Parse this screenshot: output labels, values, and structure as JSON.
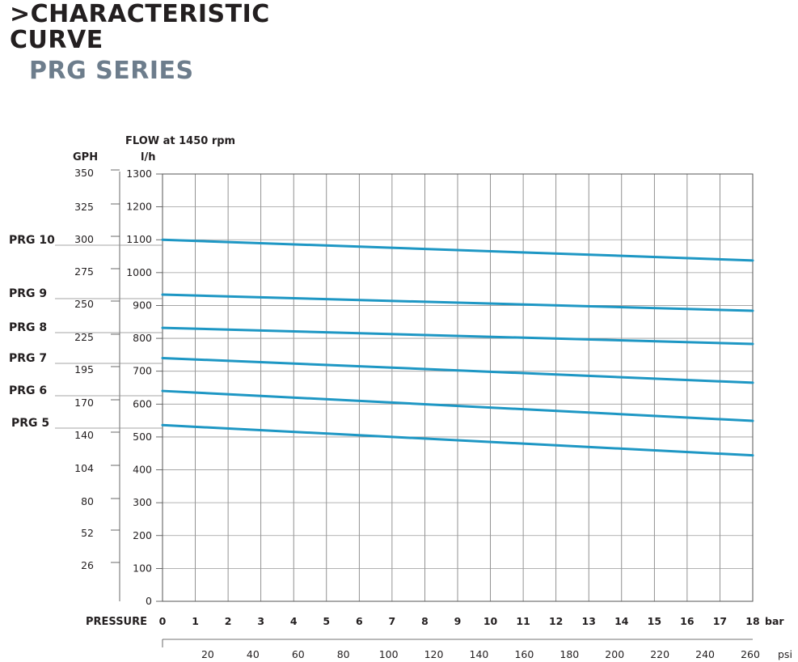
{
  "header": {
    "title_line1": ">CHARACTERISTIC",
    "title_line2": "CURVE",
    "subtitle": "PRG SERIES"
  },
  "chart_data": {
    "type": "line",
    "title": "FLOW at 1450 rpm",
    "ylabel_gph": "GPH",
    "ylabel_lh": "l/h",
    "xlabel": "PRESSURE",
    "x_unit_bar": "bar",
    "x_unit_psi": "psi",
    "x_bar_ticks": [
      "0",
      "1",
      "2",
      "3",
      "4",
      "5",
      "6",
      "7",
      "8",
      "9",
      "10",
      "11",
      "12",
      "13",
      "14",
      "15",
      "16",
      "17",
      "18"
    ],
    "x_psi_ticks": [
      "20",
      "40",
      "60",
      "80",
      "100",
      "120",
      "140",
      "160",
      "180",
      "200",
      "220",
      "240",
      "260"
    ],
    "x_psi_values": [
      20,
      40,
      60,
      80,
      100,
      120,
      140,
      160,
      180,
      200,
      220,
      240,
      260
    ],
    "y_lh_ticks": [
      "0",
      "100",
      "200",
      "300",
      "400",
      "500",
      "600",
      "700",
      "800",
      "900",
      "1000",
      "1100",
      "1200",
      "1300"
    ],
    "y_gph_ticks": [
      "26",
      "52",
      "80",
      "104",
      "140",
      "170",
      "195",
      "225",
      "250",
      "275",
      "300",
      "325",
      "350"
    ],
    "xlim": [
      0,
      18
    ],
    "ylim": [
      0,
      1300
    ],
    "grid": true,
    "line_color": "#1e97c4",
    "series": [
      {
        "name": "PRG 10",
        "x": [
          0,
          18
        ],
        "values": [
          1100,
          1037
        ]
      },
      {
        "name": "PRG 9",
        "x": [
          0,
          18
        ],
        "values": [
          933,
          884
        ]
      },
      {
        "name": "PRG 8",
        "x": [
          0,
          18
        ],
        "values": [
          832,
          783
        ]
      },
      {
        "name": "PRG 7",
        "x": [
          0,
          18
        ],
        "values": [
          740,
          665
        ]
      },
      {
        "name": "PRG 6",
        "x": [
          0,
          18
        ],
        "values": [
          640,
          549
        ]
      },
      {
        "name": "PRG 5",
        "x": [
          0,
          18
        ],
        "values": [
          536,
          444
        ]
      }
    ]
  }
}
